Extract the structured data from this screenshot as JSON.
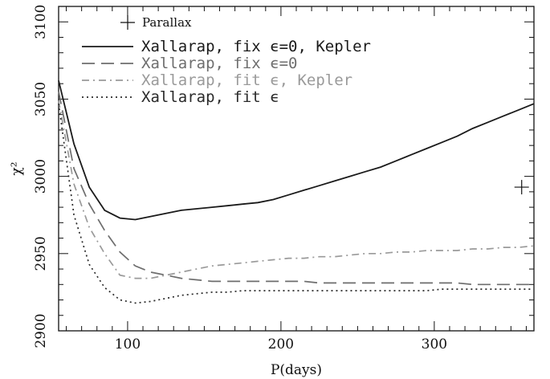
{
  "chart_data": {
    "type": "line",
    "xlabel": "P(days)",
    "ylabel": "χ²",
    "xlim": [
      55,
      365
    ],
    "ylim": [
      2900,
      3110
    ],
    "x_ticks": [
      100,
      200,
      300
    ],
    "y_ticks": [
      2900,
      2950,
      3000,
      3050,
      3100
    ],
    "legend_placement": "top-left",
    "parallax": {
      "name": "Parallax",
      "marker": "plus",
      "x": 357,
      "y": 2993
    },
    "series": [
      {
        "name": "Xallarap, fix ϵ=0, Kepler",
        "color": "#1a1a1a",
        "dash": "solid",
        "x": [
          55,
          65,
          75,
          85,
          95,
          105,
          115,
          125,
          135,
          145,
          155,
          165,
          175,
          185,
          195,
          205,
          215,
          225,
          235,
          245,
          255,
          265,
          275,
          285,
          295,
          305,
          315,
          325,
          335,
          345,
          355,
          365
        ],
        "y": [
          3062,
          3021,
          2993,
          2978,
          2973,
          2972,
          2974,
          2976,
          2978,
          2979,
          2980,
          2981,
          2982,
          2983,
          2985,
          2988,
          2991,
          2994,
          2997,
          3000,
          3003,
          3006,
          3010,
          3014,
          3018,
          3022,
          3026,
          3031,
          3035,
          3039,
          3043,
          3047
        ]
      },
      {
        "name": "Xallarap, fix ϵ=0",
        "color": "#6e6e6e",
        "dash": "long-dash",
        "x": [
          55,
          65,
          75,
          85,
          95,
          105,
          115,
          125,
          135,
          145,
          155,
          165,
          175,
          185,
          195,
          205,
          215,
          225,
          235,
          245,
          255,
          265,
          275,
          285,
          295,
          305,
          315,
          325,
          335,
          345,
          355,
          365
        ],
        "y": [
          3055,
          3005,
          2982,
          2965,
          2951,
          2942,
          2938,
          2936,
          2934,
          2933,
          2932,
          2932,
          2932,
          2932,
          2932,
          2932,
          2932,
          2931,
          2931,
          2931,
          2931,
          2931,
          2931,
          2931,
          2931,
          2931,
          2931,
          2930,
          2930,
          2930,
          2930,
          2930
        ]
      },
      {
        "name": "Xallarap, fit ϵ, Kepler",
        "color": "#9a9a9a",
        "dash": "dash-dot",
        "x": [
          55,
          65,
          75,
          85,
          95,
          105,
          115,
          125,
          135,
          145,
          155,
          165,
          175,
          185,
          195,
          205,
          215,
          225,
          235,
          245,
          255,
          265,
          275,
          285,
          295,
          305,
          315,
          325,
          335,
          345,
          355,
          365
        ],
        "y": [
          3049,
          2995,
          2967,
          2950,
          2936,
          2934,
          2934,
          2936,
          2938,
          2940,
          2942,
          2943,
          2944,
          2945,
          2946,
          2947,
          2947,
          2948,
          2948,
          2949,
          2950,
          2950,
          2951,
          2951,
          2952,
          2952,
          2952,
          2953,
          2953,
          2954,
          2954,
          2955
        ]
      },
      {
        "name": "Xallarap, fit ϵ",
        "color": "#2a2a2a",
        "dash": "dotted",
        "x": [
          55,
          65,
          75,
          85,
          95,
          105,
          115,
          125,
          135,
          145,
          155,
          165,
          175,
          185,
          195,
          205,
          215,
          225,
          235,
          245,
          255,
          265,
          275,
          285,
          295,
          305,
          315,
          325,
          335,
          345,
          355,
          365
        ],
        "y": [
          3047,
          2975,
          2943,
          2928,
          2920,
          2918,
          2919,
          2921,
          2923,
          2924,
          2925,
          2925,
          2926,
          2926,
          2926,
          2926,
          2926,
          2926,
          2926,
          2926,
          2926,
          2926,
          2926,
          2926,
          2926,
          2927,
          2927,
          2927,
          2927,
          2927,
          2927,
          2927
        ]
      }
    ]
  }
}
